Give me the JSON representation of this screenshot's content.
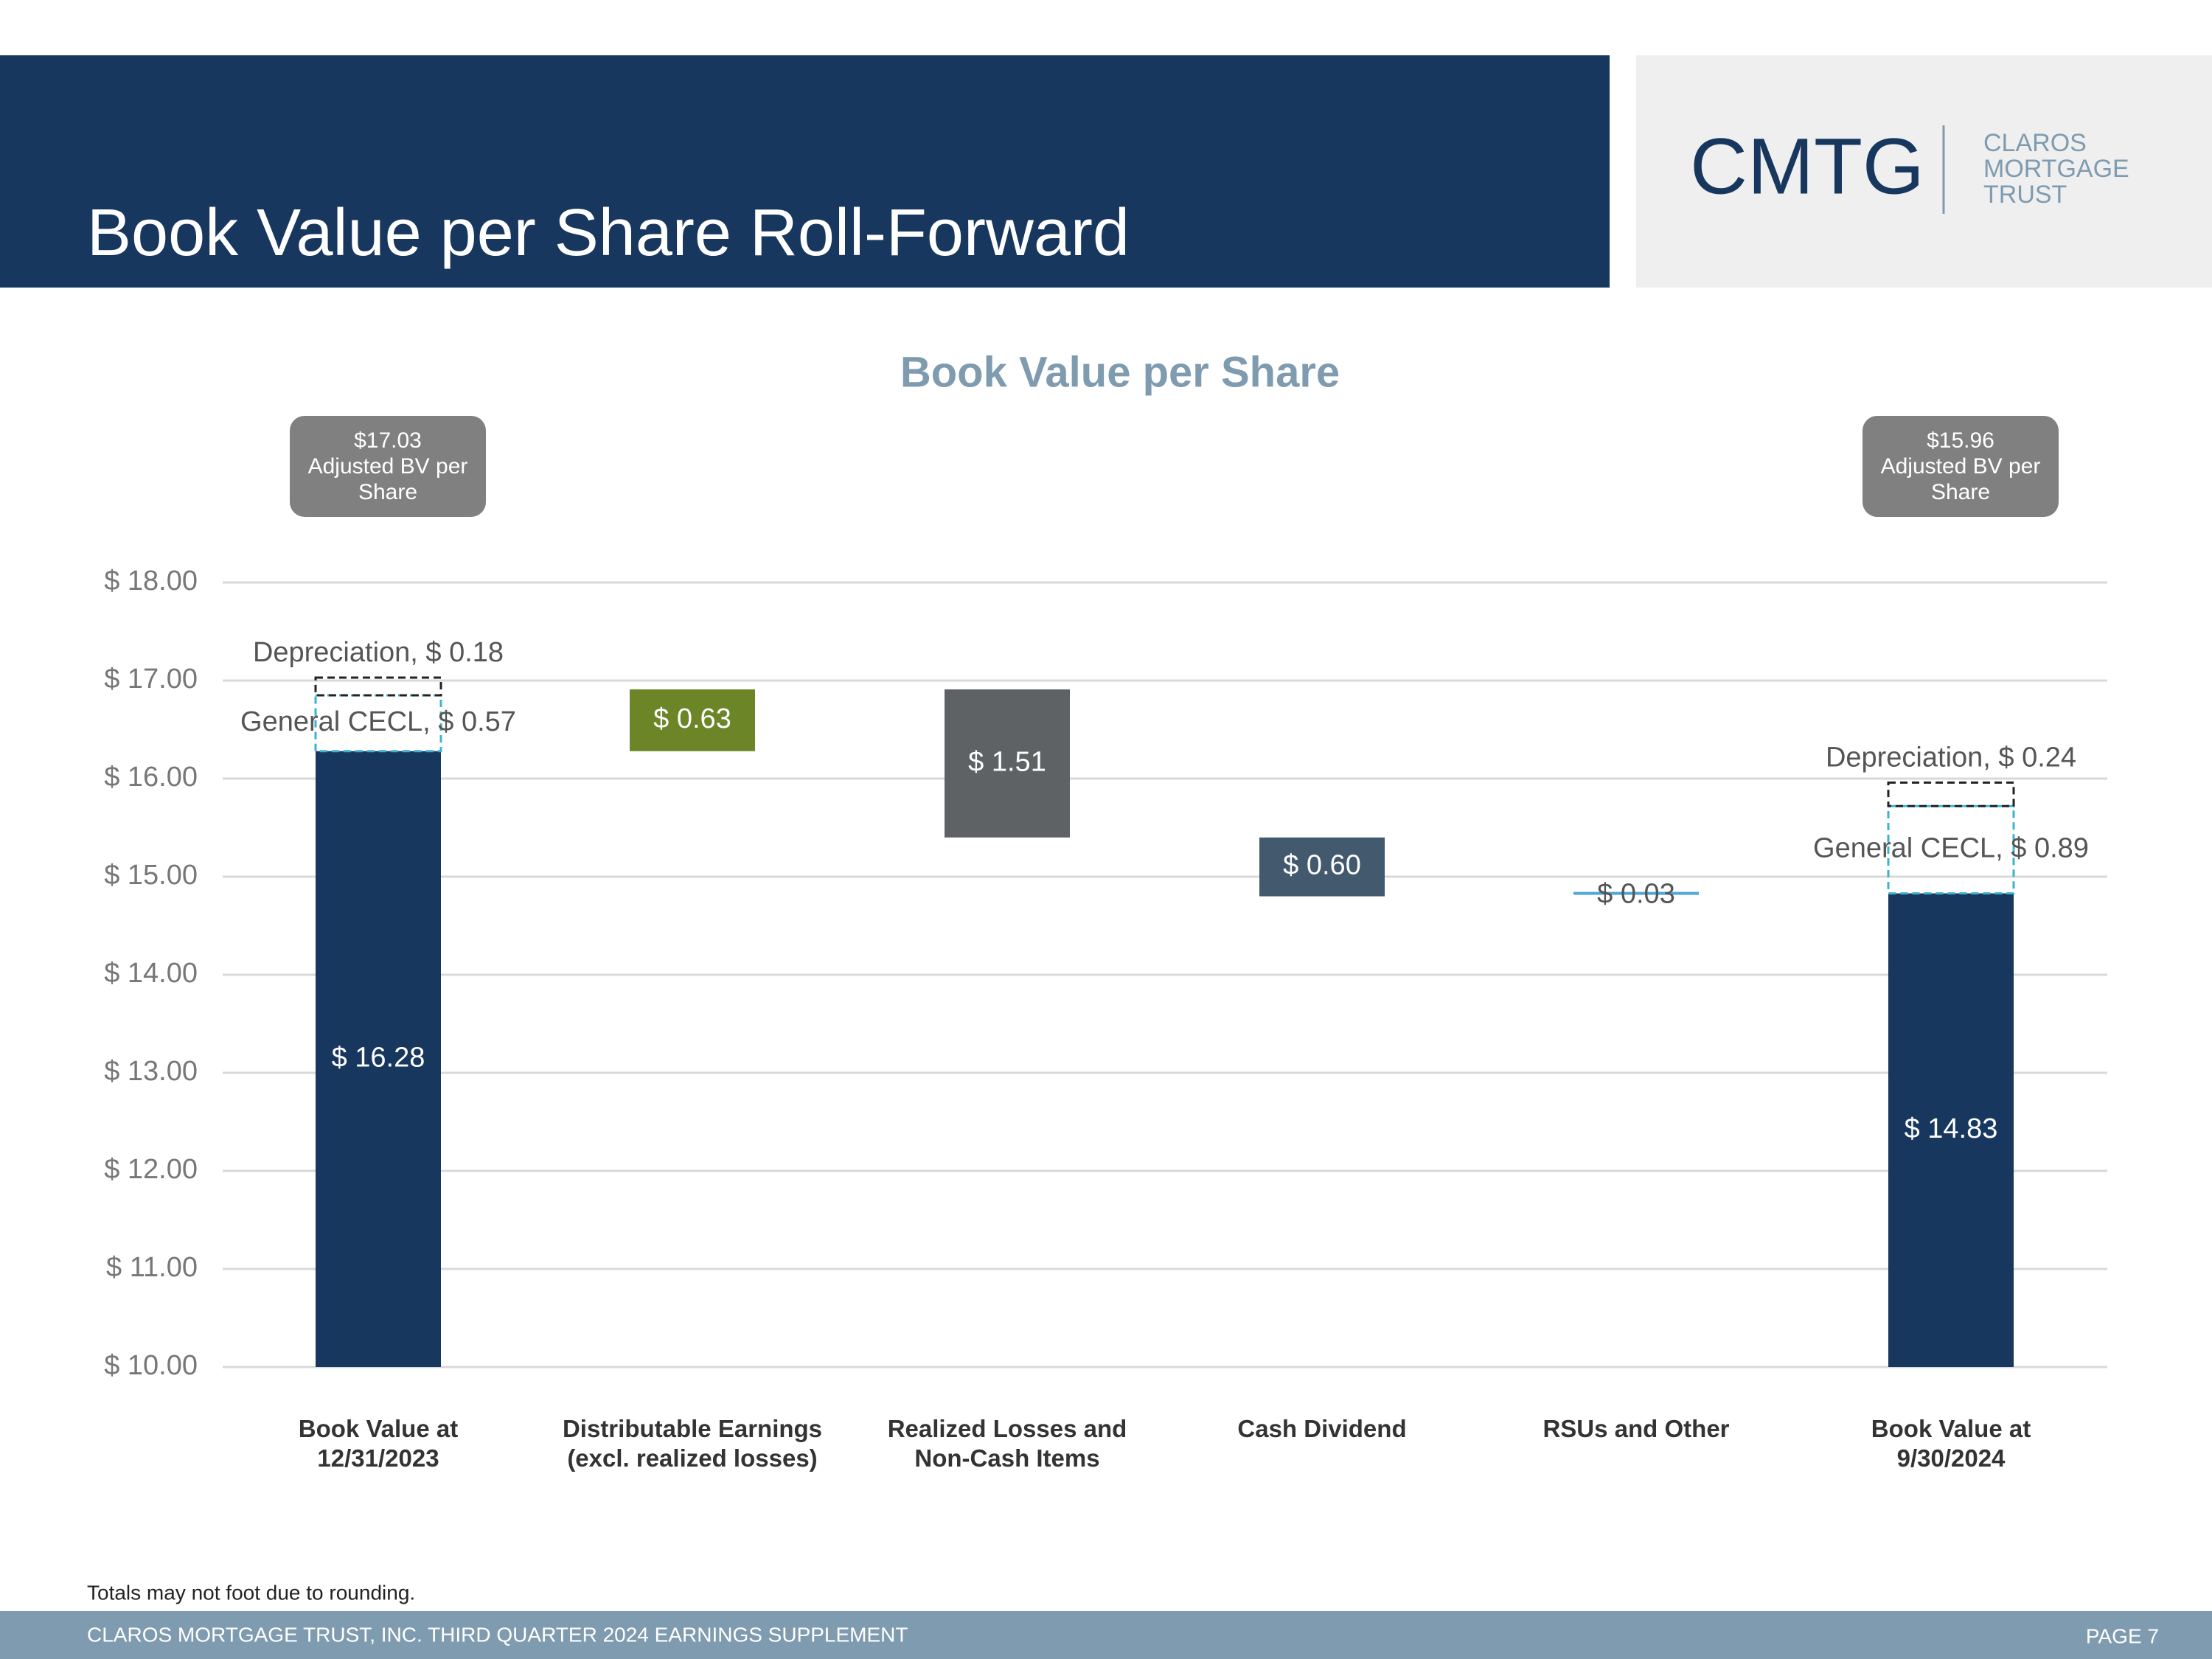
{
  "header": {
    "title": "Book Value per Share Roll-Forward",
    "logo": {
      "mark": "CMTG",
      "lines": [
        "CLAROS",
        "MORTGAGE",
        "TRUST"
      ]
    }
  },
  "chart_data": {
    "type": "waterfall",
    "title": "Book Value per Share",
    "categories": [
      [
        "Book Value at",
        "12/31/2023"
      ],
      [
        "Distributable Earnings",
        "(excl. realized losses)"
      ],
      [
        "Realized Losses and",
        "Non-Cash Items"
      ],
      [
        "Cash Dividend"
      ],
      [
        "RSUs and Other"
      ],
      [
        "Book Value at",
        "9/30/2024"
      ]
    ],
    "values": [
      16.28,
      0.63,
      -1.51,
      -0.6,
      0.03,
      14.83
    ],
    "value_labels": [
      "$ 16.28",
      "$ 0.63",
      "$ 1.51",
      "$ 0.60",
      "$ 0.03",
      "$ 14.83"
    ],
    "colors": [
      "#17375e",
      "#6b8527",
      "#5f6264",
      "#435a6e",
      "#4fa8d8",
      "#17375e"
    ],
    "adjustments": [
      {
        "values": [
          0.57,
          null,
          null,
          null,
          null,
          0.89
        ],
        "value_labels": [
          "General CECL, $ 0.57",
          null,
          null,
          null,
          null,
          "General CECL, $ 0.89"
        ],
        "color": "#3bb3d0"
      },
      {
        "values": [
          0.18,
          null,
          null,
          null,
          null,
          0.24
        ],
        "value_labels": [
          "Depreciation, $ 0.18",
          null,
          null,
          null,
          null,
          "Depreciation, $ 0.24"
        ],
        "color": "#222222"
      }
    ],
    "annotations": [
      [
        "$17.03",
        "Adjusted BV per",
        "Share"
      ],
      [
        "$15.96",
        "Adjusted BV per",
        "Share"
      ]
    ],
    "ylim": [
      10,
      18
    ],
    "yticks": [
      {
        "value": 10,
        "label": "$ 10.00"
      },
      {
        "value": 11,
        "label": "$ 11.00"
      },
      {
        "value": 12,
        "label": "$ 12.00"
      },
      {
        "value": 13,
        "label": "$ 13.00"
      },
      {
        "value": 14,
        "label": "$ 14.00"
      },
      {
        "value": 15,
        "label": "$ 15.00"
      },
      {
        "value": 16,
        "label": "$ 16.00"
      },
      {
        "value": 17,
        "label": "$ 17.00"
      },
      {
        "value": 18,
        "label": "$ 18.00"
      }
    ],
    "grid": true
  },
  "footnote": "Totals may not foot due to rounding.",
  "footer": {
    "text": "CLAROS MORTGAGE TRUST, INC. THIRD QUARTER 2024 EARNINGS SUPPLEMENT",
    "page": "PAGE 7"
  }
}
